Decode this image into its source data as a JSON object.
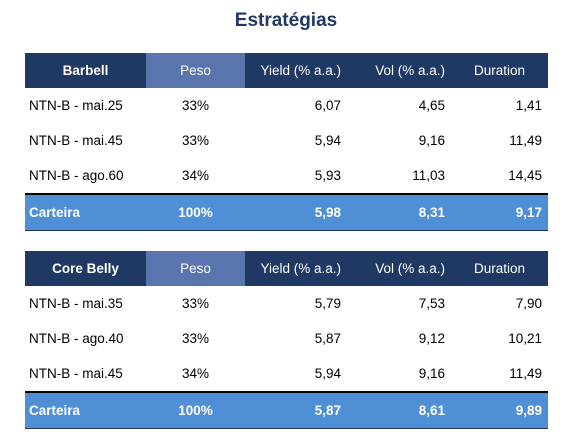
{
  "title": "Estratégias",
  "tables": [
    {
      "name": "Barbell",
      "headers": [
        "Peso",
        "Yield (% a.a.)",
        "Vol (% a.a.)",
        "Duration"
      ],
      "rows": [
        {
          "name": "NTN-B - mai.25",
          "peso": "33%",
          "yield": "6,07",
          "vol": "4,65",
          "duration": "1,41"
        },
        {
          "name": "NTN-B - mai.45",
          "peso": "33%",
          "yield": "5,94",
          "vol": "9,16",
          "duration": "11,49"
        },
        {
          "name": "NTN-B - ago.60",
          "peso": "34%",
          "yield": "5,93",
          "vol": "11,03",
          "duration": "14,45"
        }
      ],
      "total": {
        "name": "Carteira",
        "peso": "100%",
        "yield": "5,98",
        "vol": "8,31",
        "duration": "9,17"
      }
    },
    {
      "name": "Core Belly",
      "headers": [
        "Peso",
        "Yield (% a.a.)",
        "Vol (% a.a.)",
        "Duration"
      ],
      "rows": [
        {
          "name": "NTN-B - mai.35",
          "peso": "33%",
          "yield": "5,79",
          "vol": "7,53",
          "duration": "7,90"
        },
        {
          "name": "NTN-B - ago.40",
          "peso": "33%",
          "yield": "5,87",
          "vol": "9,12",
          "duration": "10,21"
        },
        {
          "name": "NTN-B - mai.45",
          "peso": "34%",
          "yield": "5,94",
          "vol": "9,16",
          "duration": "11,49"
        }
      ],
      "total": {
        "name": "Carteira",
        "peso": "100%",
        "yield": "5,87",
        "vol": "8,61",
        "duration": "9,89"
      }
    }
  ],
  "colors": {
    "header": "#1f3864",
    "peso_header": "#5a75ad",
    "total_row": "#4f8fd6",
    "title": "#1f3864"
  }
}
